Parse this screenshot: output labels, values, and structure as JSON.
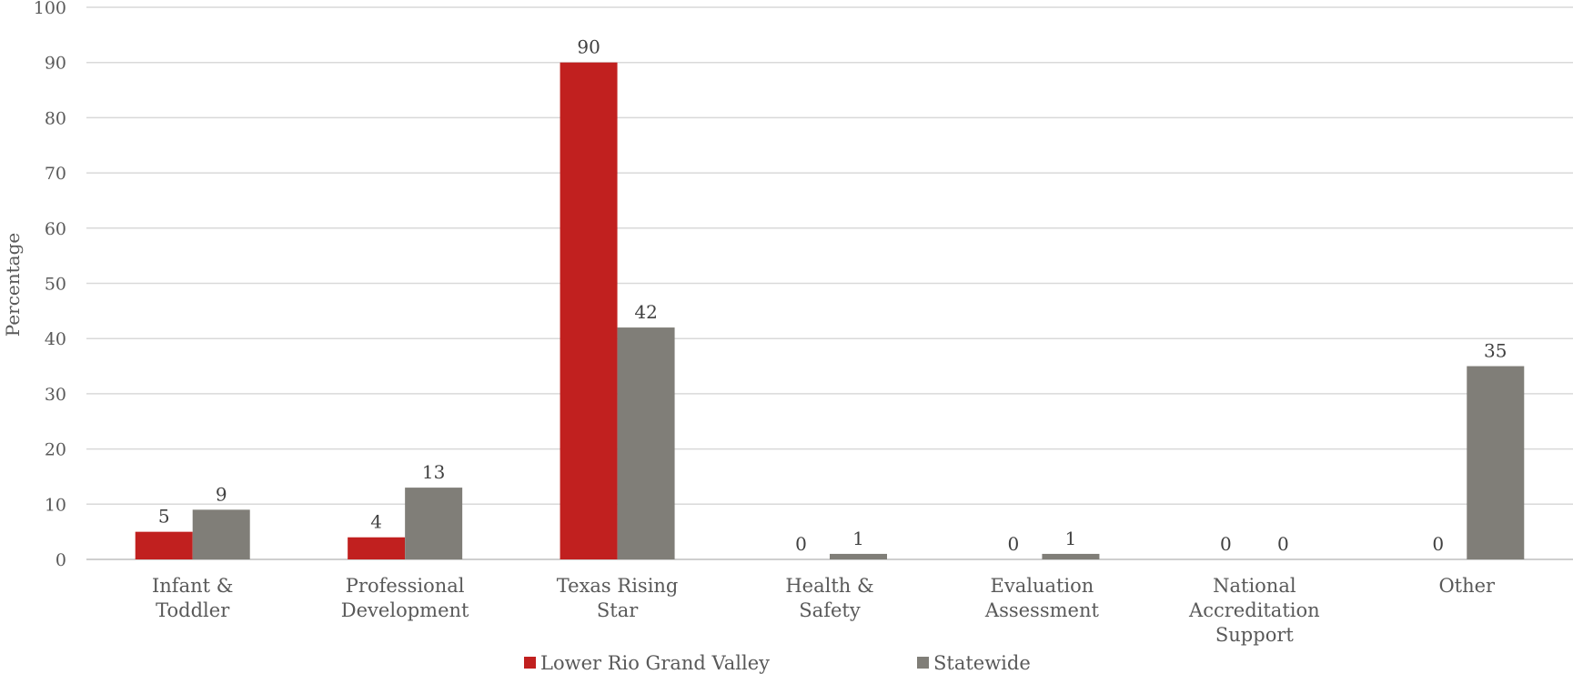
{
  "chart_data": {
    "type": "bar",
    "categories": [
      [
        "Infant &",
        "Toddler"
      ],
      [
        "Professional",
        "Development"
      ],
      [
        "Texas Rising",
        "Star"
      ],
      [
        "Health &",
        "Safety"
      ],
      [
        "Evaluation",
        "Assessment"
      ],
      [
        "National",
        "Accreditation",
        "Support"
      ],
      [
        "Other"
      ]
    ],
    "series": [
      {
        "name": "Lower Rio Grand Valley",
        "color": "#c1201f",
        "values": [
          5,
          4,
          90,
          0,
          0,
          0,
          0
        ]
      },
      {
        "name": "Statewide",
        "color": "#807e78",
        "values": [
          9,
          13,
          42,
          1,
          1,
          0,
          35
        ]
      }
    ],
    "ylabel": "Percentage",
    "ylim": [
      0,
      100
    ],
    "yticks": [
      0,
      10,
      20,
      30,
      40,
      50,
      60,
      70,
      80,
      90,
      100
    ],
    "grid": true,
    "legend_position": "bottom"
  }
}
